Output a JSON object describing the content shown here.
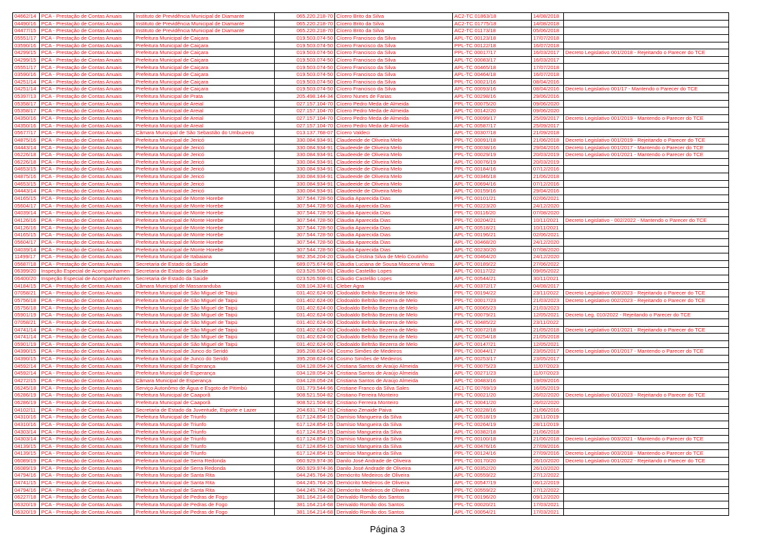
{
  "table": {
    "rows": [
      [
        "04662/14",
        "PCA - Prestação de Contas Anuais",
        "Instituto de Previdência Municipal de Diamante",
        "065.220.218-70",
        "Cícero Brito da Silva",
        "AC2-TC 01863/18",
        "14/08/2018"
      ],
      [
        "04490/16",
        "PCA - Prestação de Contas Anuais",
        "Instituto de Previdência Municipal de Diamante",
        "065.220.218-70",
        "Cícero Brito da Silva",
        "AC2-TC 01775/18",
        "14/08/2018"
      ],
      [
        "04477/15",
        "PCA - Prestação de Contas Anuais",
        "Instituto de Previdência Municipal de Diamante",
        "065.220.218-70",
        "Cícero Brito da Silva",
        "AC2-TC 01173/18",
        "05/06/2018"
      ],
      [
        "05551/17",
        "PCA - Prestação de Contas Anuais",
        "Prefeitura Municipal de Caiçara",
        "019.503.074-50",
        "Cícero Francisco da Silva",
        "APL-TC 00123/18",
        "17/07/2018"
      ],
      [
        "03590/16",
        "PCA - Prestação de Contas Anuais",
        "Prefeitura Municipal de Caiçara",
        "019.503.074-50",
        "Cícero Francisco da Silva",
        "PPL-TC 00122/18",
        "16/07/2018"
      ],
      [
        "04299/15",
        "PCA - Prestação de Contas Anuais",
        "Prefeitura Municipal de Caiçara",
        "019.503.074-50",
        "Cícero Francisco da Silva",
        "PPL-TC 00017/17",
        "16/03/2017",
        "Decreto Legislativo 001/2018 - Rejeitando o Parecer do TCE"
      ],
      [
        "04299/15",
        "PCA - Prestação de Contas Anuais",
        "Prefeitura Municipal de Caiçara",
        "019.503.074-50",
        "Cícero Francisco da Silva",
        "APL-TC 00083/17",
        "16/03/2017"
      ],
      [
        "05551/17",
        "PCA - Prestação de Contas Anuais",
        "Prefeitura Municipal de Caiçara",
        "019.503.074-50",
        "Cícero Francisco da Silva",
        "APL-TC 00465/18",
        "17/07/2018"
      ],
      [
        "03590/16",
        "PCA - Prestação de Contas Anuais",
        "Prefeitura Municipal de Caiçara",
        "019.503.074-50",
        "Cícero Francisco da Silva",
        "APL-TC 00464/18",
        "16/07/2018"
      ],
      [
        "04251/14",
        "PCA - Prestação de Contas Anuais",
        "Prefeitura Municipal de Caiçara",
        "019.503.074-50",
        "Cícero Francisco da Silva",
        "PPL-TC 00021/16",
        "08/04/2016"
      ],
      [
        "04251/14",
        "PCA - Prestação de Contas Anuais",
        "Prefeitura Municipal de Caiçara",
        "019.503.074-50",
        "Cícero Francisco da Silva",
        "APL-TC 00093/16",
        "08/04/2016",
        "Decreto Legislativo 001/17 - Mantendo o Parecer do TCE"
      ],
      [
        "05397/13",
        "PCA - Prestação de Contas Anuais",
        "Prefeitura Municipal de Prata",
        "205.498.144-34",
        "Cícero Nunes de Farias",
        "APL-TC 00298/16",
        "29/06/2016"
      ],
      [
        "05358/17",
        "PCA - Prestação de Contas Anuais",
        "Prefeitura Municipal de Areial",
        "027.157.104-70",
        "Cícero Pedro Meda de Almeida",
        "PPL-TC 00075/20",
        "09/06/2020"
      ],
      [
        "05358/17",
        "PCA - Prestação de Contas Anuais",
        "Prefeitura Municipal de Areial",
        "027.157.104-70",
        "Cícero Pedro Meda de Almeida",
        "APL-TC 00142/20",
        "09/06/2020"
      ],
      [
        "04350/16",
        "PCA - Prestação de Contas Anuais",
        "Prefeitura Municipal de Areial",
        "027.157.104-70",
        "Cícero Pedro Meda de Almeida",
        "PPL-TC 00099/17",
        "25/09/2017",
        "Decreto Legislativo 001/2019 - Mantendo o Parecer do TCE"
      ],
      [
        "04350/16",
        "PCA - Prestação de Contas Anuais",
        "Prefeitura Municipal de Areial",
        "027.157.104-70",
        "Cícero Pedro Meda de Almeida",
        "APL-TC 00587/17",
        "25/09/2017"
      ],
      [
        "05677/17",
        "PCA - Prestação de Contas Anuais",
        "Câmara Municipal de São Sebastião do Umbuzeiro",
        "013.137.768-07",
        "Cícero Valdeci",
        "APL-TC 00307/18",
        "21/09/2018"
      ],
      [
        "04875/16",
        "PCA - Prestação de Contas Anuais",
        "Prefeitura Municipal de Jericó",
        "330.084.934-91",
        "Claudeeide de Oliveira Melo",
        "PPL-TC 00091/18",
        "21/06/2018",
        "Decreto Legislativo 001/2019 - Rejeitando o Parecer do TCE"
      ],
      [
        "04443/14",
        "PCA - Prestação de Contas Anuais",
        "Prefeitura Municipal de Jericó",
        "330.084.934-91",
        "Claudeeide de Oliveira Melo",
        "PPL-TC 00038/16",
        "29/04/2016",
        "Decreto Legislativo 001/2017 - Mantendo o Parecer do TCE"
      ],
      [
        "06226/18",
        "PCA - Prestação de Contas Anuais",
        "Prefeitura Municipal de Jericó",
        "330.084.934-91",
        "Claudeeide de Oliveira Melo",
        "PPL-TC 00029/19",
        "20/03/2019",
        "Decreto Legislativo 001/2021 - Mantendo o Parecer do TCE"
      ],
      [
        "06226/18",
        "PCA - Prestação de Contas Anuais",
        "Prefeitura Municipal de Jericó",
        "330.084.934-91",
        "Claudeeide de Oliveira Melo",
        "APL-TC 00076/19",
        "20/03/2019"
      ],
      [
        "04653/15",
        "PCA - Prestação de Contas Anuais",
        "Prefeitura Municipal de Jericó",
        "330.084.934-91",
        "Claudeeide de Oliveira Melo",
        "PPL-TC 00184/16",
        "07/12/2016"
      ],
      [
        "04875/16",
        "PCA - Prestação de Contas Anuais",
        "Prefeitura Municipal de Jericó",
        "330.084.934-91",
        "Claudeeide de Oliveira Melo",
        "APL-TC 00346/18",
        "21/06/2018"
      ],
      [
        "04653/15",
        "PCA - Prestação de Contas Anuais",
        "Prefeitura Municipal de Jericó",
        "330.084.934-91",
        "Claudeeide de Oliveira Melo",
        "APL-TC 00694/16",
        "07/12/2016"
      ],
      [
        "04443/14",
        "PCA - Prestação de Contas Anuais",
        "Prefeitura Municipal de Jericó",
        "330.084.934-91",
        "Claudeeide de Oliveira Melo",
        "APL-TC 00159/16",
        "29/04/2016"
      ],
      [
        "04165/15",
        "PCA - Prestação de Contas Anuais",
        "Prefeitura Municipal de Monte Horebe",
        "307.544.728-50",
        "Cláudia Aparecida Dias",
        "PPL-TC 00101/21",
        "02/06/2021"
      ],
      [
        "05604/17",
        "PCA - Prestação de Contas Anuais",
        "Prefeitura Municipal de Monte Horebe",
        "307.544.728-50",
        "Cláudia Aparecida Dias",
        "PPL-TC 00223/20",
        "24/12/2020"
      ],
      [
        "04039/14",
        "PCA - Prestação de Contas Anuais",
        "Prefeitura Municipal de Monte Horebe",
        "307.544.728-50",
        "Cláudia Aparecida Dias",
        "PPL-TC 00116/20",
        "07/08/2020"
      ],
      [
        "04126/16",
        "PCA - Prestação de Contas Anuais",
        "Prefeitura Municipal de Monte Horebe",
        "307.544.728-50",
        "Cláudia Aparecida Dias",
        "PPL-TC 00204/21",
        "10/11/2021",
        "Decreto Legislativo - 002/2022 - Mantendo o Parecer do TCE"
      ],
      [
        "04126/16",
        "PCA - Prestação de Contas Anuais",
        "Prefeitura Municipal de Monte Horebe",
        "307.544.728-50",
        "Cláudia Aparecida Dias",
        "APL-TC 00518/21",
        "10/11/2021"
      ],
      [
        "04165/15",
        "PCA - Prestação de Contas Anuais",
        "Prefeitura Municipal de Monte Horebe",
        "307.544.728-50",
        "Cláudia Aparecida Dias",
        "APL-TC 00196/21",
        "02/06/2021"
      ],
      [
        "05604/17",
        "PCA - Prestação de Contas Anuais",
        "Prefeitura Municipal de Monte Horebe",
        "307.544.728-50",
        "Cláudia Aparecida Dias",
        "APL-TC 00468/20",
        "24/12/2020"
      ],
      [
        "04039/14",
        "PCA - Prestação de Contas Anuais",
        "Prefeitura Municipal de Monte Horebe",
        "307.544.728-50",
        "Cláudia Aparecida Dias",
        "APL-TC 00230/20",
        "07/08/2020"
      ],
      [
        "11499/17",
        "PCA - Prestação de Contas Anuais",
        "Prefeitura Municipal de Itabaiana",
        "982.354.204-20",
        "Cláudia Cristina Silva de Melo Coutinho",
        "APL-TC 00464/20",
        "24/12/2020"
      ],
      [
        "05687/18",
        "PCA - Prestação de Contas Anuais",
        "Secretaria de Estado da Saúde",
        "689.075.674-68",
        "Cláudia Luciana de Sousa Mascena Veras",
        "APL-TC 00189/22",
        "27/06/2022"
      ],
      [
        "06399/20",
        "Inspeção Especial de Acompanhamen",
        "Secretaria de Estado da Saúde",
        "023.526.508-01",
        "Cláudio Castelão Lopes",
        "APL-TC 00117/22",
        "09/05/2022"
      ],
      [
        "06400/20",
        "Inspeção Especial de Acompanhamen",
        "Secretaria de Estado da Saúde",
        "023.526.508-01",
        "Cláudio Castelão Lopes",
        "APL-TC 00544/21",
        "30/11/2021"
      ],
      [
        "04184/15",
        "PCA - Prestação de Contas Anuais",
        "Câmara Municipal de Massaranduba",
        "028.104.324-81",
        "Cleber Agra",
        "APL-TC 00372/17",
        "04/08/2017"
      ],
      [
        "07058/21",
        "PCA - Prestação de Contas Anuais",
        "Prefeitura Municipal de São Miguel de Taipú",
        "031.402.624-00",
        "Clodoaldo Beltrão Bezerra de Melo",
        "PPL-TC 00194/22",
        "23/11/2022",
        "Decreto Legislativo 003/2023 - Rejeitando o Parecer do TCE"
      ],
      [
        "05756/18",
        "PCA - Prestação de Contas Anuais",
        "Prefeitura Municipal de São Miguel de Taipú",
        "031.402.624-00",
        "Clodoaldo Beltrão Bezerra de Melo",
        "PPL-TC 00017/23",
        "21/03/2023",
        "Decreto Legislativo 002/2023 - Rejeitando o Parecer do TCE"
      ],
      [
        "05756/18",
        "PCA - Prestação de Contas Anuais",
        "Prefeitura Municipal de São Miguel de Taipú",
        "031.402.624-00",
        "Clodoaldo Beltrão Bezerra de Melo",
        "APL-TC 00065/23",
        "21/03/2023"
      ],
      [
        "05901/19",
        "PCA - Prestação de Contas Anuais",
        "Prefeitura Municipal de São Miguel de Taipú",
        "031.402.624-00",
        "Clodoaldo Beltrão Bezerra de Melo",
        "PPL-TC 00079/21",
        "12/05/2021",
        "Decreto Leg. 010/2022 - Rejeitando o Parecer do TCE"
      ],
      [
        "07058/21",
        "PCA - Prestação de Contas Anuais",
        "Prefeitura Municipal de São Miguel de Taipú",
        "031.402.624-00",
        "Clodoaldo Beltrão Bezerra de Melo",
        "APL-TC 00485/22",
        "23/11/2022"
      ],
      [
        "04741/14",
        "PCA - Prestação de Contas Anuais",
        "Prefeitura Municipal de São Miguel de Taipú",
        "031.402.624-00",
        "Clodoaldo Beltrão Bezerra de Melo",
        "PPL-TC 00072/18",
        "21/05/2018",
        "Decreto Legislativo 001/2021 - Rejeitando o Parecer do TCE"
      ],
      [
        "04741/14",
        "PCA - Prestação de Contas Anuais",
        "Prefeitura Municipal de São Miguel de Taipú",
        "031.402.624-00",
        "Clodoaldo Beltrão Bezerra de Melo",
        "APL-TC 00254/18",
        "21/05/2018"
      ],
      [
        "05901/19",
        "PCA - Prestação de Contas Anuais",
        "Prefeitura Municipal de São Miguel de Taipú",
        "031.402.624-00",
        "Clodoaldo Beltrão Bezerra de Melo",
        "APL-TC 00147/21",
        "12/05/2021"
      ],
      [
        "04390/15",
        "PCA - Prestação de Contas Anuais",
        "Prefeitura Municipal de Junco do Seridó",
        "395.208.624-04",
        "Cosmo Simões de Medeiros",
        "PPL-TC 00044/17",
        "23/05/2017",
        "Decreto Legislativo 001/2017 - Mantendo o Parecer do TCE"
      ],
      [
        "04390/15",
        "PCA - Prestação de Contas Anuais",
        "Prefeitura Municipal de Junco do Seridó",
        "395.208.624-04",
        "Cosmo Simões de Medeiros",
        "APL-TC 00253/17",
        "23/05/2017"
      ],
      [
        "04592/14",
        "PCA - Prestação de Contas Anuais",
        "Prefeitura Municipal de Esperança",
        "034.128.054-24",
        "Cristiana Santos de Araújo Almeida",
        "PPL-TC 00075/23",
        "11/07/2023"
      ],
      [
        "04592/14",
        "PCA - Prestação de Contas Anuais",
        "Prefeitura Municipal de Esperança",
        "034.128.054-24",
        "Cristiana Santos de Araújo Almeida",
        "APL-TC 00271/23",
        "11/07/2023"
      ],
      [
        "04272/15",
        "PCA - Prestação de Contas Anuais",
        "Câmara Municipal de Esperança",
        "034.128.054-24",
        "Cristiana Santos de Araújo Almeida",
        "APL-TC 00483/16",
        "19/09/2016"
      ],
      [
        "06245/18",
        "PCA - Prestação de Contas Anuais",
        "Serviço Autonômo de Água e Esgoto de Pitimbú",
        "031.779.544-96",
        "Cristiane Franco da Silva Sales",
        "AC1-TC 00769/19",
        "16/05/2019"
      ],
      [
        "06286/19",
        "PCA - Prestação de Contas Anuais",
        "Prefeitura Municipal de Caaporã",
        "908.521.504-82",
        "Cristiano Ferreira Monteiro",
        "PPL-TC 00021/20",
        "26/02/2020",
        "Decreto Legislativo 001/2023 - Rejeitando o Parecer do TCE"
      ],
      [
        "06286/19",
        "PCA - Prestação de Contas Anuais",
        "Prefeitura Municipal de Caaporã",
        "908.521.504-82",
        "Cristiano Ferreira Monteiro",
        "APL-TC 00041/20",
        "26/02/2020"
      ],
      [
        "04102/11",
        "PCA - Prestação de Contas Anuais",
        "Secretaria de Estado da Juventude, Esporte e Lazer",
        "204.631.704-15",
        "Cristiano Zenaide Paiva",
        "APL-TC 00228/16",
        "21/06/2016"
      ],
      [
        "04310/16",
        "PCA - Prestação de Contas Anuais",
        "Prefeitura Municipal de Triunfo",
        "617.124.854-15",
        "Damísio Mangueira da Silva",
        "APL-TC 00518/19",
        "28/11/2019"
      ],
      [
        "04310/16",
        "PCA - Prestação de Contas Anuais",
        "Prefeitura Municipal de Triunfo",
        "617.124.854-15",
        "Damísio Mangueira da Silva",
        "PPL-TC 00264/19",
        "28/11/2019"
      ],
      [
        "04303/14",
        "PCA - Prestação de Contas Anuais",
        "Prefeitura Municipal de Triunfo",
        "617.124.854-15",
        "Damísio Mangueira da Silva",
        "APL-TC 00382/18",
        "21/06/2018"
      ],
      [
        "04303/14",
        "PCA - Prestação de Contas Anuais",
        "Prefeitura Municipal de Triunfo",
        "617.124.854-15",
        "Damísio Mangueira da Silva",
        "PPL-TC 00100/18",
        "21/06/2018",
        "Decreto Legislativo 003/2021 - Mantendo o Parecer do TCE"
      ],
      [
        "04139/15",
        "PCA - Prestação de Contas Anuais",
        "Prefeitura Municipal de Triunfo",
        "617.124.854-15",
        "Damísio Mangueira da Silva",
        "APL-TC 00476/16",
        "27/09/2016"
      ],
      [
        "04139/15",
        "PCA - Prestação de Contas Anuais",
        "Prefeitura Municipal de Triunfo",
        "617.124.854-15",
        "Damísio Mangueira da Silva",
        "PPL-TC 00124/16",
        "27/09/2016",
        "Decreto Legislativo 003/2018 - Mantendo o Parecer do TCE"
      ],
      [
        "06089/19",
        "PCA - Prestação de Contas Anuais",
        "Prefeitura Municipal de Serra Redonda",
        "060.929.974-36",
        "Danilo José Andrade de Oliveira",
        "PPL-TC 00170/20",
        "26/10/2020",
        "Decreto Legislativo 001/2022 - Rejeitando o Parecer do TCE"
      ],
      [
        "06089/19",
        "PCA - Prestação de Contas Anuais",
        "Prefeitura Municipal de Serra Redonda",
        "060.929.974-36",
        "Danilo José Andrade de Oliveira",
        "APL-TC 00352/20",
        "26/10/2020"
      ],
      [
        "04794/16",
        "PCA - Prestação de Contas Anuais",
        "Prefeitura Municipal de Santa Rita",
        "044.245.764-26",
        "Demócrito Medeiros de Oliveira",
        "APL-TC 00559/22",
        "27/12/2022"
      ],
      [
        "04741/15",
        "PCA - Prestação de Contas Anuais",
        "Prefeitura Municipal de Santa Rita",
        "044.245.764-26",
        "Demócrito Medeiros de Oliveira",
        "APL-TC 00547/19",
        "06/12/2019"
      ],
      [
        "04794/16",
        "PCA - Prestação de Contas Anuais",
        "Prefeitura Municipal de Santa Rita",
        "044.245.764-26",
        "Demócrito Medeiros de Oliveira",
        "PPL-TC 00559/22",
        "27/12/2022"
      ],
      [
        "06227/18",
        "PCA - Prestação de Contas Anuais",
        "Prefeitura Municipal de Pedras de Fogo",
        "381.164.214-68",
        "Derivaldo Romão dos Santos",
        "PPL-TC 00196/20",
        "09/12/2020"
      ],
      [
        "06320/19",
        "PCA - Prestação de Contas Anuais",
        "Prefeitura Municipal de Pedras de Fogo",
        "381.164.214-68",
        "Derivaldo Romão dos Santos",
        "PPL-TC 00020/21",
        "17/03/2021"
      ],
      [
        "06320/19",
        "PCA - Prestação de Contas Anuais",
        "Prefeitura Municipal de Pedras de Fogo",
        "381.164.214-68",
        "Derivaldo Romão dos Santos",
        "APL-TC 00054/21",
        "17/03/2021"
      ]
    ]
  },
  "footer": {
    "page": "Página 3"
  }
}
